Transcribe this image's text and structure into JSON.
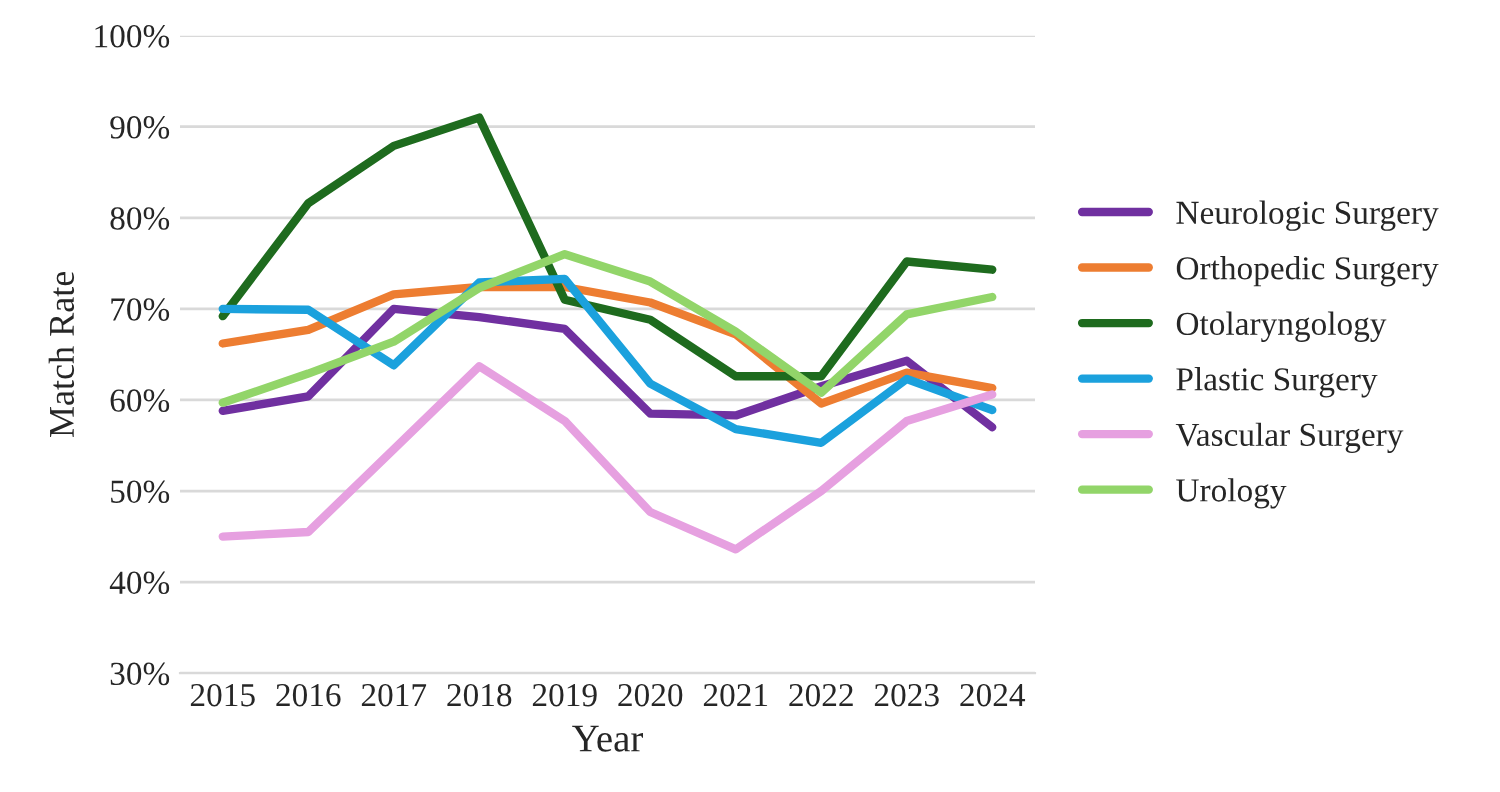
{
  "chart_data": {
    "type": "line",
    "xlabel": "Year",
    "ylabel": "Match Rate",
    "categories": [
      "2015",
      "2016",
      "2017",
      "2018",
      "2019",
      "2020",
      "2021",
      "2022",
      "2023",
      "2024"
    ],
    "series": [
      {
        "name": "Neurologic Surgery",
        "color": "#7030a0",
        "values": [
          58.8,
          60.4,
          70.0,
          69.1,
          67.8,
          58.5,
          58.3,
          61.5,
          64.3,
          57.0
        ]
      },
      {
        "name": "Orthopedic Surgery",
        "color": "#ed7d31",
        "values": [
          66.2,
          67.7,
          71.6,
          72.4,
          72.4,
          70.7,
          67.2,
          59.6,
          63.0,
          61.3
        ]
      },
      {
        "name": "Otolaryngology",
        "color": "#1e6b1e",
        "values": [
          69.2,
          81.6,
          87.9,
          91.0,
          71.0,
          68.8,
          62.6,
          62.6,
          75.2,
          74.3
        ]
      },
      {
        "name": "Plastic Surgery",
        "color": "#1ba1dd",
        "values": [
          70.0,
          69.9,
          63.8,
          72.9,
          73.3,
          61.8,
          56.8,
          55.3,
          62.3,
          58.9
        ]
      },
      {
        "name": "Vascular Surgery",
        "color": "#e6a0e0",
        "values": [
          45.0,
          45.5,
          54.6,
          63.7,
          57.7,
          47.7,
          43.6,
          50.0,
          57.7,
          60.6
        ]
      },
      {
        "name": "Urology",
        "color": "#92d569",
        "values": [
          59.7,
          62.9,
          66.4,
          72.3,
          76.0,
          73.0,
          67.5,
          60.8,
          69.4,
          71.3
        ]
      }
    ],
    "ylim": [
      30,
      100
    ],
    "yticks": [
      {
        "value": 30,
        "label": "30%"
      },
      {
        "value": 40,
        "label": "40%"
      },
      {
        "value": 50,
        "label": "50%"
      },
      {
        "value": 60,
        "label": "60%"
      },
      {
        "value": 70,
        "label": "70%"
      },
      {
        "value": 80,
        "label": "80%"
      },
      {
        "value": 90,
        "label": "90%"
      },
      {
        "value": 100,
        "label": "100%"
      }
    ],
    "grid": "y",
    "legend": "right",
    "marker": "none",
    "line_style": "solid"
  }
}
